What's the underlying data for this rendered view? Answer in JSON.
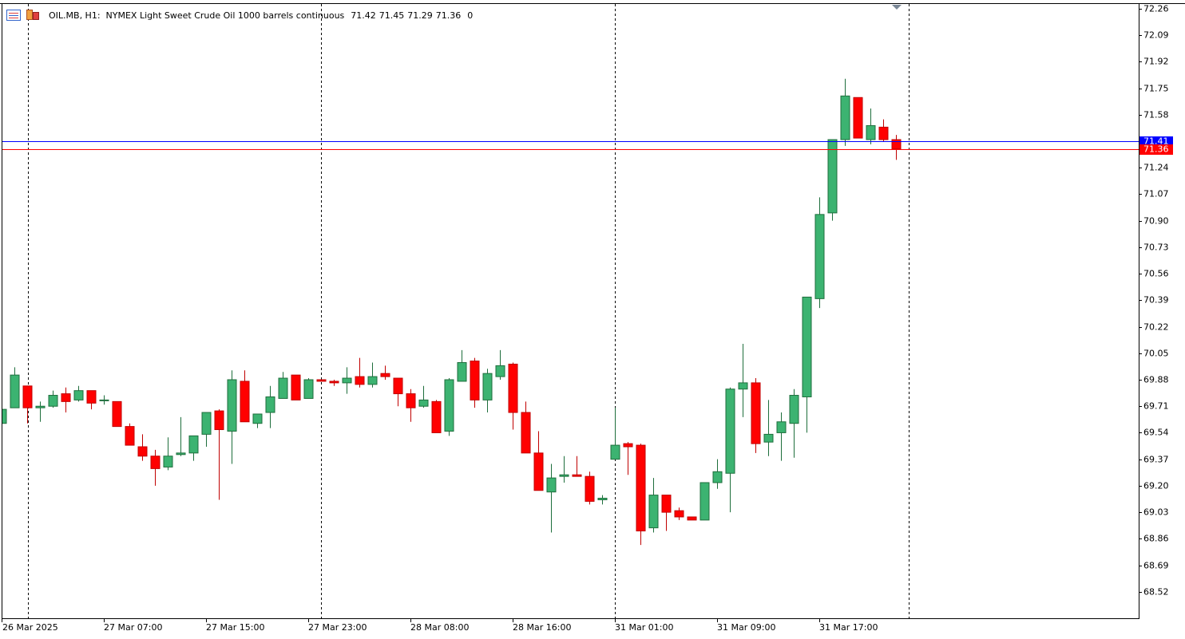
{
  "chart_data": {
    "type": "candlestick",
    "title": "OIL.MB, H1:  NYMEX Light Sweet Crude Oil 1000 barrels continuous",
    "last_volume": 0,
    "categories": [
      "26 Mar 2025",
      null,
      null,
      null,
      null,
      null,
      null,
      null,
      "27 Mar 07:00",
      null,
      null,
      null,
      null,
      null,
      null,
      null,
      "27 Mar 15:00",
      null,
      null,
      null,
      null,
      null,
      null,
      null,
      "27 Mar 23:00",
      null,
      null,
      null,
      null,
      null,
      null,
      null,
      "28 Mar 08:00",
      null,
      null,
      null,
      null,
      null,
      null,
      null,
      "28 Mar 16:00",
      null,
      null,
      null,
      null,
      null,
      null,
      null,
      "31 Mar 01:00",
      null,
      null,
      null,
      null,
      null,
      null,
      null,
      "31 Mar 09:00",
      null,
      null,
      null,
      null,
      null,
      null,
      null,
      "31 Mar 17:00",
      null,
      null,
      null,
      null,
      null,
      null
    ],
    "open": [
      69.6,
      69.7,
      69.84,
      69.7,
      69.71,
      69.79,
      69.75,
      69.81,
      69.75,
      69.74,
      69.58,
      69.45,
      69.39,
      69.32,
      69.4,
      69.41,
      69.53,
      69.68,
      69.55,
      69.87,
      69.6,
      69.67,
      69.76,
      69.91,
      69.76,
      69.88,
      69.87,
      69.86,
      69.9,
      69.85,
      69.92,
      69.89,
      69.79,
      69.71,
      69.74,
      69.55,
      69.87,
      70.0,
      69.75,
      69.9,
      69.98,
      69.67,
      69.41,
      69.16,
      69.26,
      69.27,
      69.26,
      69.11,
      69.37,
      69.47,
      69.46,
      68.93,
      69.14,
      69.04,
      69.0,
      68.98,
      69.22,
      69.28,
      69.82,
      69.86,
      69.48,
      69.54,
      69.6,
      69.77,
      70.4,
      70.95,
      71.42,
      71.69,
      71.42,
      71.5,
      71.42
    ],
    "high": [
      69.7,
      69.96,
      69.84,
      69.74,
      69.81,
      69.83,
      69.84,
      69.81,
      69.78,
      69.74,
      69.6,
      69.53,
      69.43,
      69.51,
      69.64,
      69.52,
      69.67,
      69.69,
      69.94,
      69.94,
      69.66,
      69.84,
      69.93,
      69.91,
      69.89,
      69.88,
      69.88,
      69.96,
      70.02,
      69.99,
      69.97,
      69.89,
      69.82,
      69.84,
      69.75,
      69.89,
      70.07,
      70.02,
      69.95,
      70.07,
      69.99,
      69.74,
      69.55,
      69.34,
      69.39,
      69.39,
      69.29,
      69.14,
      69.7,
      69.48,
      69.47,
      69.25,
      69.14,
      69.06,
      69.0,
      69.22,
      69.37,
      69.83,
      70.11,
      69.89,
      69.75,
      69.67,
      69.82,
      70.41,
      71.05,
      71.42,
      71.81,
      71.69,
      71.62,
      71.55,
      71.45
    ],
    "low": [
      69.6,
      69.7,
      69.6,
      69.61,
      69.7,
      69.67,
      69.74,
      69.69,
      69.72,
      69.58,
      69.46,
      69.36,
      69.2,
      69.3,
      69.39,
      69.36,
      69.45,
      69.11,
      69.34,
      69.61,
      69.57,
      69.57,
      69.76,
      69.75,
      69.76,
      69.87,
      69.84,
      69.79,
      69.83,
      69.83,
      69.88,
      69.71,
      69.61,
      69.7,
      69.54,
      69.52,
      69.87,
      69.7,
      69.67,
      69.88,
      69.56,
      69.41,
      69.17,
      68.9,
      69.22,
      69.26,
      69.08,
      69.08,
      69.37,
      69.27,
      68.82,
      68.9,
      68.91,
      68.98,
      68.98,
      68.98,
      69.18,
      69.03,
      69.64,
      69.41,
      69.39,
      69.36,
      69.38,
      69.54,
      70.34,
      70.9,
      71.38,
      71.43,
      71.39,
      71.41,
      71.29
    ],
    "close": [
      69.69,
      69.91,
      69.7,
      69.71,
      69.78,
      69.74,
      69.81,
      69.73,
      69.75,
      69.58,
      69.46,
      69.39,
      69.31,
      69.39,
      69.41,
      69.52,
      69.67,
      69.56,
      69.88,
      69.61,
      69.66,
      69.77,
      69.89,
      69.75,
      69.88,
      69.87,
      69.86,
      69.89,
      69.85,
      69.9,
      69.9,
      69.79,
      69.7,
      69.75,
      69.54,
      69.88,
      69.99,
      69.75,
      69.92,
      69.97,
      69.67,
      69.41,
      69.17,
      69.25,
      69.27,
      69.26,
      69.1,
      69.12,
      69.46,
      69.45,
      68.91,
      69.14,
      69.03,
      69.0,
      68.98,
      69.22,
      69.29,
      69.82,
      69.86,
      69.47,
      69.53,
      69.61,
      69.78,
      70.41,
      70.94,
      71.42,
      71.7,
      71.43,
      71.51,
      71.42,
      71.36
    ],
    "up_color": "#3cb371",
    "down_color": "#ff0000",
    "price_lines": [
      {
        "value": 71.41,
        "color": "#0000ff"
      },
      {
        "value": 71.36,
        "color": "#ff0000"
      }
    ],
    "ylim": [
      68.35,
      72.29
    ],
    "yticks": [
      72.26,
      72.09,
      71.92,
      71.75,
      71.58,
      71.41,
      71.24,
      71.07,
      {
        "value": 70.9,
        "label": "70.90"
      },
      70.73,
      70.56,
      70.39,
      70.22,
      70.05,
      69.88,
      69.71,
      69.54,
      69.37,
      {
        "value": 69.2,
        "label": "69.20"
      },
      69.03,
      68.86,
      68.69,
      68.52
    ],
    "grid": false
  }
}
